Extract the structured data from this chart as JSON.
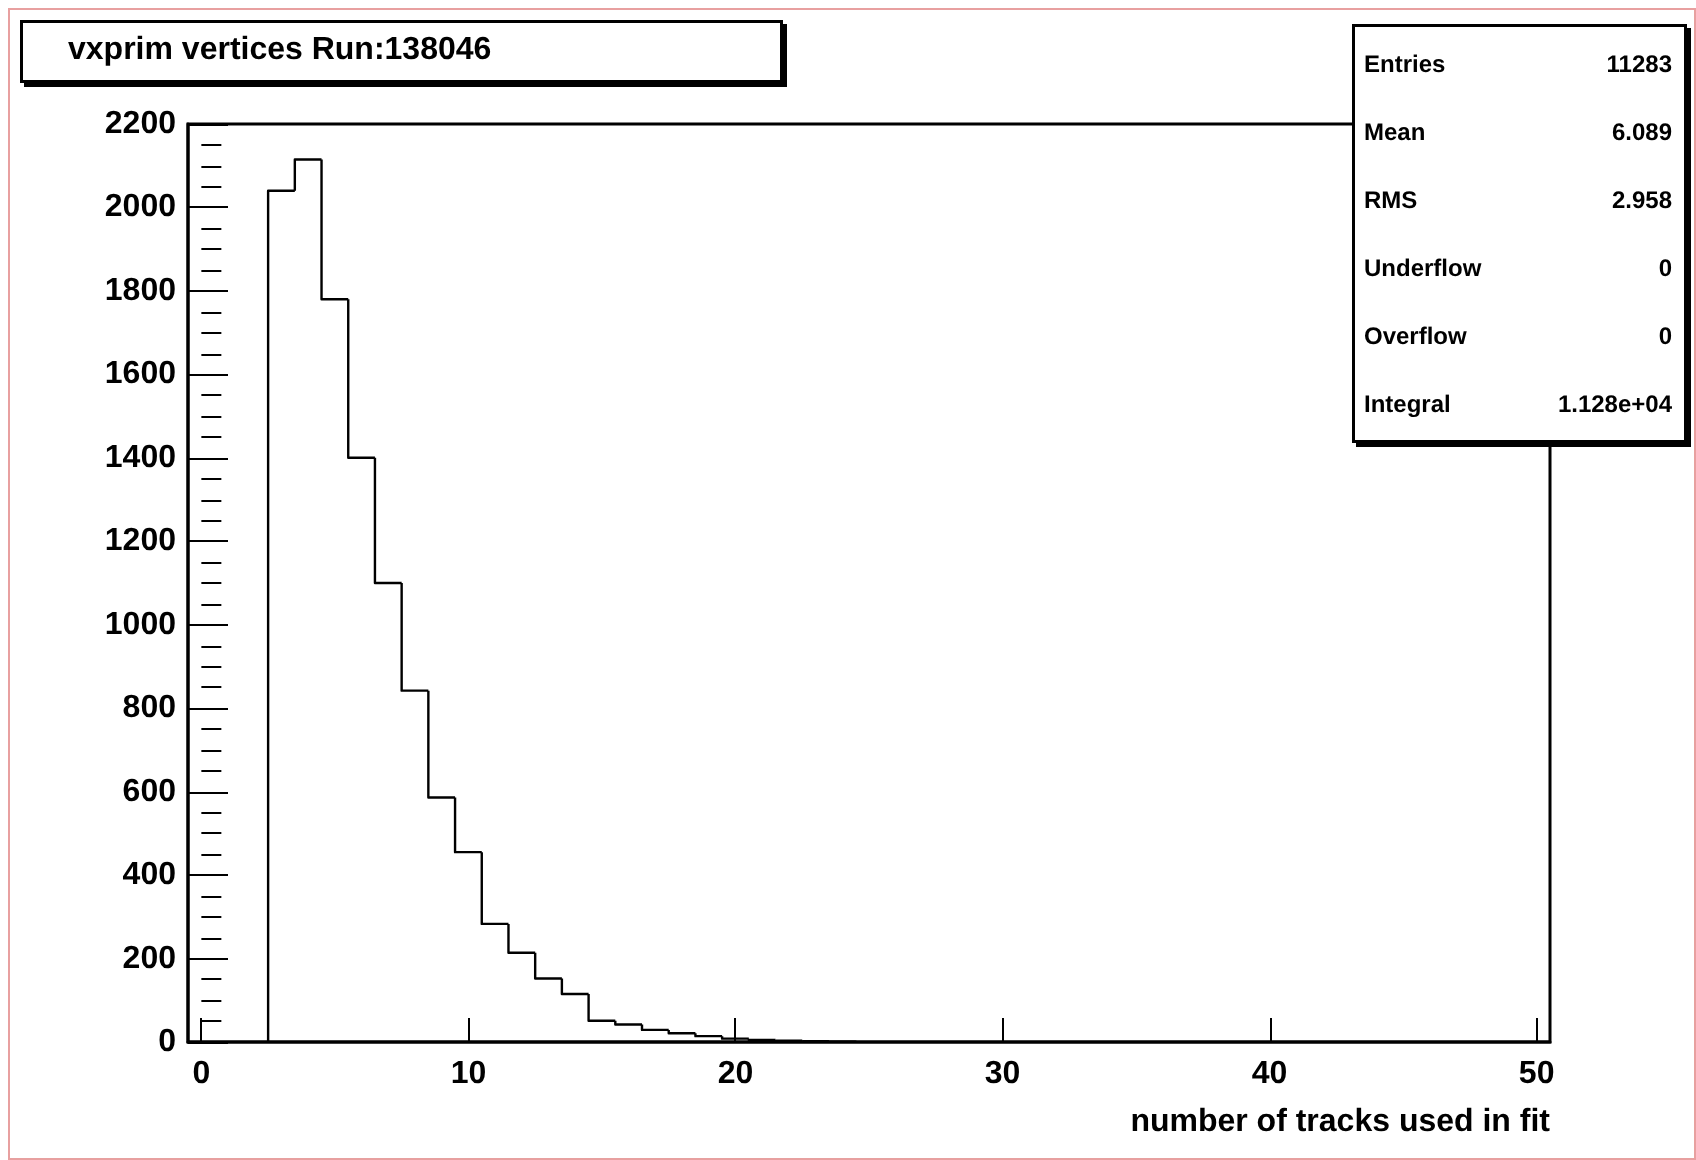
{
  "chart_data": {
    "type": "histogram",
    "title": "vxprim vertices Run:138046",
    "xlabel": "number of tracks used in fit",
    "bins": [
      2.5,
      3.5,
      4.5,
      5.5,
      6.5,
      7.5,
      8.5,
      9.5,
      10.5,
      11.5,
      12.5,
      13.5,
      14.5,
      15.5,
      16.5,
      17.5,
      18.5,
      19.5,
      20.5,
      21.5,
      22.5,
      23.5,
      24.5
    ],
    "values": [
      2040,
      2115,
      1780,
      1400,
      1100,
      842,
      586,
      455,
      283,
      214,
      152,
      115,
      51,
      42,
      29,
      21,
      14,
      8,
      5,
      3,
      2,
      1
    ],
    "color": "#000000",
    "xlim": [
      -0.5,
      50.5
    ],
    "xticks": [
      0,
      10,
      20,
      30,
      40,
      50
    ],
    "ylim": [
      0,
      2200
    ],
    "yticks": [
      0,
      200,
      400,
      600,
      800,
      1000,
      1200,
      1400,
      1600,
      1800,
      2000,
      2200
    ],
    "grid": false,
    "annotations": [
      "Entries 11283",
      "Mean 6.089",
      "RMS 2.958",
      "Underflow 0",
      "Overflow 0",
      "Integral 1.128e+04"
    ]
  }
}
